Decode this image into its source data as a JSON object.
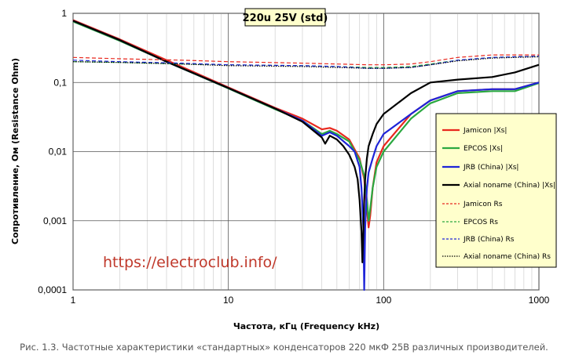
{
  "caption": "Рис. 1.3. Частотные характеристики «стандартных» конденсаторов 220 мкФ 25В различных производителей.",
  "watermark": "https://electroclub.info/",
  "chart_data": {
    "type": "line",
    "title": "220u 25V (std)",
    "xlabel": "Частота, кГц (Frequency kHz)",
    "ylabel": "Сопротивление, Ом (Resistance Ohm)",
    "x_scale": "log",
    "y_scale": "log",
    "xlim": [
      1,
      1000
    ],
    "ylim": [
      0.0001,
      1
    ],
    "x_ticks": [
      "1",
      "10",
      "100",
      "1000"
    ],
    "y_ticks": [
      "1",
      "0,1",
      "0,01",
      "0,001",
      "0,0001"
    ],
    "grid": true,
    "legend_position": "right",
    "series": [
      {
        "name": "Jamicon |Xs|",
        "color": "#e8281e",
        "style": "solid",
        "x": [
          1,
          2,
          4,
          10,
          20,
          30,
          40,
          45,
          50,
          60,
          70,
          75,
          78,
          80,
          82,
          85,
          90,
          100,
          150,
          200,
          300,
          500,
          700,
          1000
        ],
        "y": [
          0.8,
          0.42,
          0.21,
          0.085,
          0.043,
          0.03,
          0.021,
          0.022,
          0.02,
          0.015,
          0.008,
          0.004,
          0.0015,
          0.0008,
          0.0012,
          0.003,
          0.007,
          0.012,
          0.035,
          0.055,
          0.075,
          0.08,
          0.08,
          0.1
        ]
      },
      {
        "name": "EPCOS |Xs|",
        "color": "#2aa840",
        "style": "solid",
        "x": [
          1,
          2,
          4,
          10,
          20,
          30,
          40,
          45,
          50,
          60,
          70,
          75,
          78,
          80,
          82,
          85,
          90,
          100,
          150,
          200,
          300,
          500,
          700,
          1000
        ],
        "y": [
          0.76,
          0.4,
          0.2,
          0.082,
          0.041,
          0.028,
          0.018,
          0.02,
          0.018,
          0.014,
          0.0075,
          0.0045,
          0.002,
          0.001,
          0.0015,
          0.003,
          0.006,
          0.01,
          0.03,
          0.05,
          0.07,
          0.075,
          0.075,
          0.098
        ]
      },
      {
        "name": "JRB (China) |Xs|",
        "color": "#1e24d8",
        "style": "solid",
        "x": [
          1,
          2,
          4,
          10,
          20,
          30,
          40,
          45,
          50,
          60,
          65,
          70,
          72,
          74,
          75,
          76,
          78,
          80,
          85,
          90,
          100,
          150,
          200,
          300,
          500,
          700,
          1000
        ],
        "y": [
          0.78,
          0.41,
          0.2,
          0.083,
          0.042,
          0.028,
          0.017,
          0.019,
          0.017,
          0.012,
          0.01,
          0.006,
          0.003,
          0.0008,
          0.0001,
          0.0008,
          0.003,
          0.005,
          0.008,
          0.012,
          0.018,
          0.035,
          0.055,
          0.075,
          0.08,
          0.08,
          0.1
        ]
      },
      {
        "name": "Axial noname (China) |Xs|",
        "color": "#000000",
        "style": "solid",
        "x": [
          1,
          2,
          4,
          10,
          20,
          30,
          40,
          42,
          45,
          50,
          55,
          60,
          65,
          68,
          70,
          72,
          73,
          74,
          75,
          76,
          78,
          80,
          85,
          90,
          100,
          150,
          200,
          300,
          500,
          700,
          1000
        ],
        "y": [
          0.78,
          0.41,
          0.2,
          0.083,
          0.042,
          0.027,
          0.016,
          0.013,
          0.017,
          0.015,
          0.012,
          0.009,
          0.006,
          0.004,
          0.002,
          0.0007,
          0.00025,
          0.0007,
          0.002,
          0.004,
          0.008,
          0.012,
          0.018,
          0.025,
          0.035,
          0.07,
          0.1,
          0.11,
          0.12,
          0.14,
          0.18
        ]
      },
      {
        "name": "Jamicon Rs",
        "color": "#e8281e",
        "style": "dashed",
        "x": [
          1,
          2,
          5,
          10,
          30,
          50,
          80,
          100,
          150,
          200,
          300,
          500,
          700,
          1000
        ],
        "y": [
          0.23,
          0.22,
          0.21,
          0.2,
          0.19,
          0.185,
          0.18,
          0.18,
          0.185,
          0.2,
          0.23,
          0.25,
          0.25,
          0.25
        ]
      },
      {
        "name": "EPCOS Rs",
        "color": "#2aa840",
        "style": "dashed",
        "x": [
          1,
          2,
          5,
          10,
          30,
          50,
          80,
          100,
          150,
          200,
          300,
          500,
          700,
          1000
        ],
        "y": [
          0.2,
          0.195,
          0.185,
          0.18,
          0.175,
          0.17,
          0.165,
          0.165,
          0.17,
          0.185,
          0.21,
          0.23,
          0.235,
          0.24
        ]
      },
      {
        "name": "JRB (China) Rs",
        "color": "#1e24d8",
        "style": "dashed",
        "x": [
          1,
          2,
          5,
          10,
          30,
          50,
          80,
          100,
          150,
          200,
          300,
          500,
          700,
          1000
        ],
        "y": [
          0.21,
          0.2,
          0.19,
          0.18,
          0.175,
          0.17,
          0.16,
          0.16,
          0.165,
          0.18,
          0.21,
          0.23,
          0.235,
          0.24
        ]
      },
      {
        "name": "Axial noname (China) Rs",
        "color": "#000000",
        "style": "dotted",
        "x": [
          1,
          2,
          5,
          10,
          30,
          50,
          80,
          100,
          150,
          200,
          300,
          500,
          700,
          1000
        ],
        "y": [
          0.2,
          0.195,
          0.185,
          0.175,
          0.17,
          0.165,
          0.16,
          0.16,
          0.165,
          0.18,
          0.205,
          0.225,
          0.23,
          0.235
        ]
      }
    ]
  }
}
